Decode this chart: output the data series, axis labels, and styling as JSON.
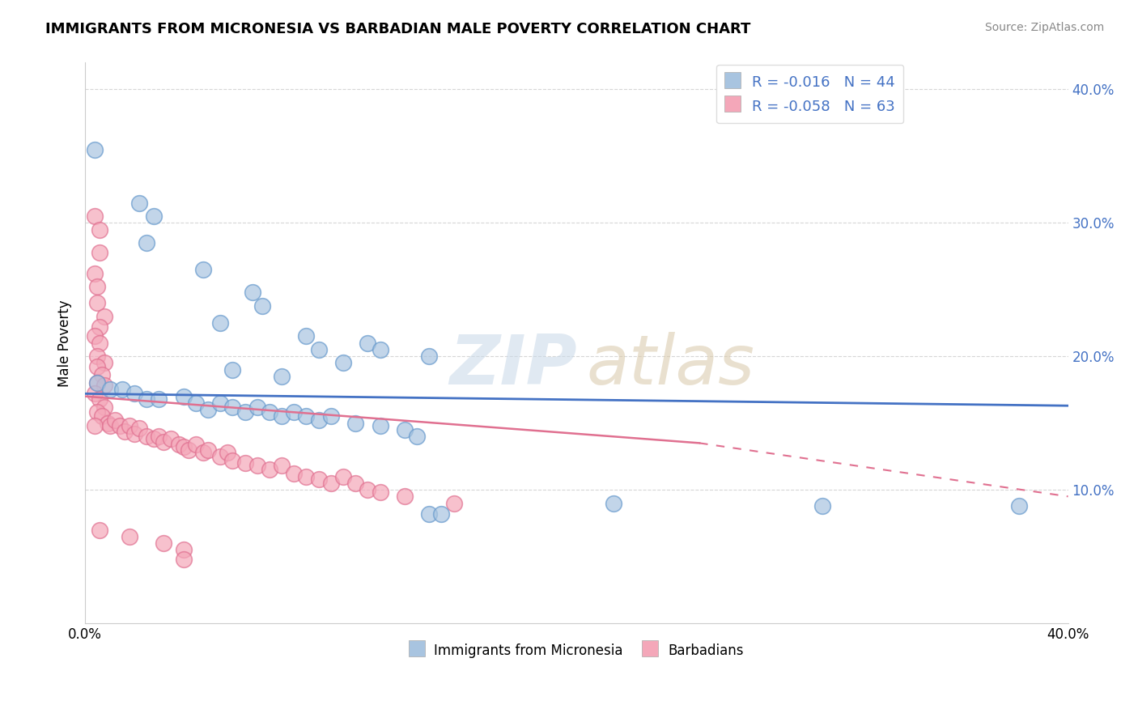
{
  "title": "IMMIGRANTS FROM MICRONESIA VS BARBADIAN MALE POVERTY CORRELATION CHART",
  "source": "Source: ZipAtlas.com",
  "ylabel": "Male Poverty",
  "legend_blue_r": "-0.016",
  "legend_blue_n": "44",
  "legend_pink_r": "-0.058",
  "legend_pink_n": "63",
  "legend_label_blue": "Immigrants from Micronesia",
  "legend_label_pink": "Barbadians",
  "xlim": [
    0.0,
    0.4
  ],
  "ylim": [
    0.0,
    0.42
  ],
  "yticks": [
    0.1,
    0.2,
    0.3,
    0.4
  ],
  "ytick_labels": [
    "10.0%",
    "20.0%",
    "30.0%",
    "40.0%"
  ],
  "blue_color": "#a8c4e0",
  "pink_color": "#f4a7b9",
  "blue_edge_color": "#6699cc",
  "pink_edge_color": "#e07090",
  "blue_line_color": "#4472c4",
  "pink_line_color": "#e07090",
  "blue_line": [
    0.0,
    0.172,
    0.4,
    0.163
  ],
  "pink_solid_line": [
    0.0,
    0.17,
    0.25,
    0.135
  ],
  "pink_dash_line": [
    0.25,
    0.135,
    0.4,
    0.095
  ],
  "blue_scatter": [
    [
      0.004,
      0.355
    ],
    [
      0.022,
      0.315
    ],
    [
      0.028,
      0.305
    ],
    [
      0.025,
      0.285
    ],
    [
      0.048,
      0.265
    ],
    [
      0.068,
      0.248
    ],
    [
      0.072,
      0.238
    ],
    [
      0.055,
      0.225
    ],
    [
      0.09,
      0.215
    ],
    [
      0.095,
      0.205
    ],
    [
      0.115,
      0.21
    ],
    [
      0.12,
      0.205
    ],
    [
      0.105,
      0.195
    ],
    [
      0.14,
      0.2
    ],
    [
      0.06,
      0.19
    ],
    [
      0.08,
      0.185
    ],
    [
      0.005,
      0.18
    ],
    [
      0.01,
      0.175
    ],
    [
      0.015,
      0.175
    ],
    [
      0.02,
      0.172
    ],
    [
      0.025,
      0.168
    ],
    [
      0.03,
      0.168
    ],
    [
      0.04,
      0.17
    ],
    [
      0.045,
      0.165
    ],
    [
      0.05,
      0.16
    ],
    [
      0.055,
      0.165
    ],
    [
      0.06,
      0.162
    ],
    [
      0.065,
      0.158
    ],
    [
      0.07,
      0.162
    ],
    [
      0.075,
      0.158
    ],
    [
      0.08,
      0.155
    ],
    [
      0.085,
      0.158
    ],
    [
      0.09,
      0.155
    ],
    [
      0.095,
      0.152
    ],
    [
      0.1,
      0.155
    ],
    [
      0.11,
      0.15
    ],
    [
      0.12,
      0.148
    ],
    [
      0.13,
      0.145
    ],
    [
      0.135,
      0.14
    ],
    [
      0.14,
      0.082
    ],
    [
      0.145,
      0.082
    ],
    [
      0.215,
      0.09
    ],
    [
      0.3,
      0.088
    ],
    [
      0.38,
      0.088
    ]
  ],
  "pink_scatter": [
    [
      0.004,
      0.305
    ],
    [
      0.006,
      0.295
    ],
    [
      0.006,
      0.278
    ],
    [
      0.004,
      0.262
    ],
    [
      0.005,
      0.252
    ],
    [
      0.005,
      0.24
    ],
    [
      0.008,
      0.23
    ],
    [
      0.006,
      0.222
    ],
    [
      0.004,
      0.215
    ],
    [
      0.006,
      0.21
    ],
    [
      0.005,
      0.2
    ],
    [
      0.008,
      0.195
    ],
    [
      0.005,
      0.192
    ],
    [
      0.007,
      0.186
    ],
    [
      0.005,
      0.18
    ],
    [
      0.008,
      0.178
    ],
    [
      0.004,
      0.172
    ],
    [
      0.006,
      0.168
    ],
    [
      0.008,
      0.162
    ],
    [
      0.005,
      0.158
    ],
    [
      0.007,
      0.155
    ],
    [
      0.009,
      0.15
    ],
    [
      0.004,
      0.148
    ],
    [
      0.01,
      0.148
    ],
    [
      0.012,
      0.152
    ],
    [
      0.014,
      0.148
    ],
    [
      0.016,
      0.144
    ],
    [
      0.018,
      0.148
    ],
    [
      0.02,
      0.142
    ],
    [
      0.022,
      0.146
    ],
    [
      0.025,
      0.14
    ],
    [
      0.028,
      0.138
    ],
    [
      0.03,
      0.14
    ],
    [
      0.032,
      0.136
    ],
    [
      0.035,
      0.138
    ],
    [
      0.038,
      0.134
    ],
    [
      0.04,
      0.132
    ],
    [
      0.042,
      0.13
    ],
    [
      0.045,
      0.134
    ],
    [
      0.048,
      0.128
    ],
    [
      0.05,
      0.13
    ],
    [
      0.055,
      0.125
    ],
    [
      0.058,
      0.128
    ],
    [
      0.06,
      0.122
    ],
    [
      0.065,
      0.12
    ],
    [
      0.07,
      0.118
    ],
    [
      0.075,
      0.115
    ],
    [
      0.08,
      0.118
    ],
    [
      0.085,
      0.112
    ],
    [
      0.09,
      0.11
    ],
    [
      0.095,
      0.108
    ],
    [
      0.1,
      0.105
    ],
    [
      0.105,
      0.11
    ],
    [
      0.11,
      0.105
    ],
    [
      0.115,
      0.1
    ],
    [
      0.12,
      0.098
    ],
    [
      0.13,
      0.095
    ],
    [
      0.15,
      0.09
    ],
    [
      0.006,
      0.07
    ],
    [
      0.018,
      0.065
    ],
    [
      0.032,
      0.06
    ],
    [
      0.04,
      0.055
    ],
    [
      0.04,
      0.048
    ]
  ]
}
